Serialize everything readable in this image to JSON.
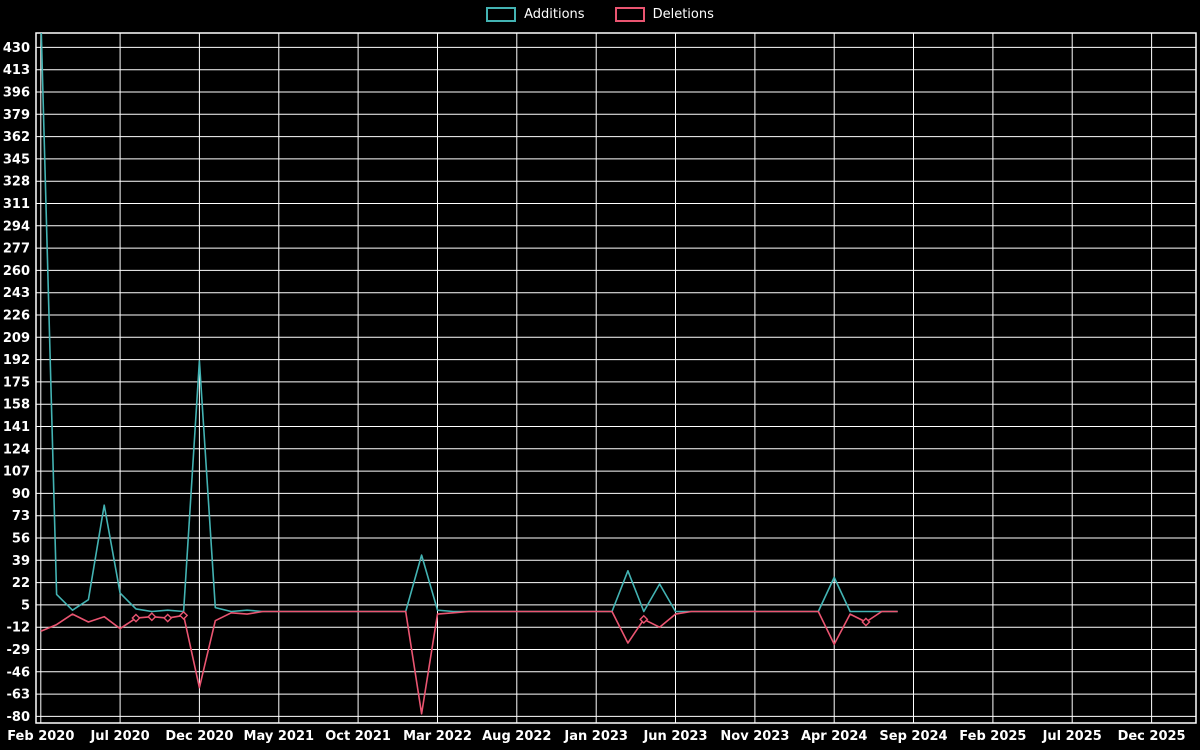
{
  "chart_data": {
    "type": "line",
    "title": "",
    "xlabel": "",
    "ylabel": "",
    "background": "#000000",
    "grid_color": "#ffffff",
    "text_color": "#ffffff",
    "legend_position": "top-center",
    "grid": true,
    "y_range": [
      -85,
      441
    ],
    "x_range": [
      -0.3,
      72.8
    ],
    "y_ticks": [
      430,
      413,
      396,
      379,
      362,
      345,
      328,
      311,
      294,
      277,
      260,
      243,
      226,
      209,
      192,
      175,
      158,
      141,
      124,
      107,
      90,
      73,
      56,
      39,
      22,
      5,
      -12,
      -29,
      -46,
      -63,
      -80
    ],
    "x_ticks": [
      {
        "month": 0,
        "label": "Feb 2020"
      },
      {
        "month": 5,
        "label": "Jul 2020"
      },
      {
        "month": 10,
        "label": "Dec 2020"
      },
      {
        "month": 15,
        "label": "May 2021"
      },
      {
        "month": 20,
        "label": "Oct 2021"
      },
      {
        "month": 25,
        "label": "Mar 2022"
      },
      {
        "month": 30,
        "label": "Aug 2022"
      },
      {
        "month": 35,
        "label": "Jan 2023"
      },
      {
        "month": 40,
        "label": "Jun 2023"
      },
      {
        "month": 45,
        "label": "Nov 2023"
      },
      {
        "month": 50,
        "label": "Apr 2024"
      },
      {
        "month": 55,
        "label": "Sep 2024"
      },
      {
        "month": 60,
        "label": "Feb 2025"
      },
      {
        "month": 65,
        "label": "Jul 2025"
      },
      {
        "month": 70,
        "label": "Dec 2025"
      }
    ],
    "months": [
      "Feb 2020",
      "Mar 2020",
      "Apr 2020",
      "May 2020",
      "Jun 2020",
      "Jul 2020",
      "Aug 2020",
      "Sep 2020",
      "Oct 2020",
      "Nov 2020",
      "Dec 2020",
      "Jan 2021",
      "Feb 2021",
      "Mar 2021",
      "Apr 2021",
      "May 2021",
      "Jun 2021",
      "Jul 2021",
      "Aug 2021",
      "Sep 2021",
      "Oct 2021",
      "Nov 2021",
      "Dec 2021",
      "Jan 2022",
      "Feb 2022",
      "Mar 2022",
      "Apr 2022",
      "May 2022",
      "Jun 2022",
      "Jul 2022",
      "Aug 2022",
      "Sep 2022",
      "Oct 2022",
      "Nov 2022",
      "Dec 2022",
      "Jan 2023",
      "Feb 2023",
      "Mar 2023",
      "Apr 2023",
      "May 2023",
      "Jun 2023",
      "Jul 2023",
      "Aug 2023",
      "Sep 2023",
      "Oct 2023",
      "Nov 2023",
      "Dec 2023",
      "Jan 2024",
      "Feb 2024",
      "Mar 2024",
      "Apr 2024",
      "May 2024",
      "Jun 2024",
      "Jul 2024",
      "Aug 2024"
    ],
    "series": [
      {
        "name": "Additions",
        "color": "#43b3b3",
        "values": [
          455,
          13,
          1,
          9,
          81,
          14,
          2,
          0,
          1,
          0,
          191,
          3,
          0,
          1,
          0,
          0,
          0,
          0,
          0,
          0,
          0,
          0,
          0,
          0,
          43,
          1,
          0,
          0,
          0,
          0,
          0,
          0,
          0,
          0,
          0,
          0,
          0,
          31,
          0,
          21,
          0,
          0,
          0,
          0,
          0,
          0,
          0,
          0,
          0,
          0,
          26,
          0,
          0,
          0,
          0
        ]
      },
      {
        "name": "Deletions",
        "color": "#ea5571",
        "values": [
          -15,
          -10,
          -2,
          -8,
          -4,
          -13,
          -5,
          -4,
          -5,
          -3,
          -58,
          -7,
          -1,
          -2,
          0,
          0,
          0,
          0,
          0,
          0,
          0,
          0,
          0,
          0,
          -78,
          -2,
          -1,
          0,
          0,
          0,
          0,
          0,
          0,
          0,
          0,
          0,
          0,
          -24,
          -6,
          -12,
          -2,
          0,
          0,
          0,
          0,
          0,
          0,
          0,
          0,
          0,
          -25,
          -2,
          -8,
          0,
          0
        ]
      }
    ],
    "markers": [
      {
        "series": 1,
        "index": 6
      },
      {
        "series": 1,
        "index": 7
      },
      {
        "series": 1,
        "index": 8
      },
      {
        "series": 1,
        "index": 9
      },
      {
        "series": 1,
        "index": 38
      },
      {
        "series": 1,
        "index": 52
      }
    ]
  }
}
